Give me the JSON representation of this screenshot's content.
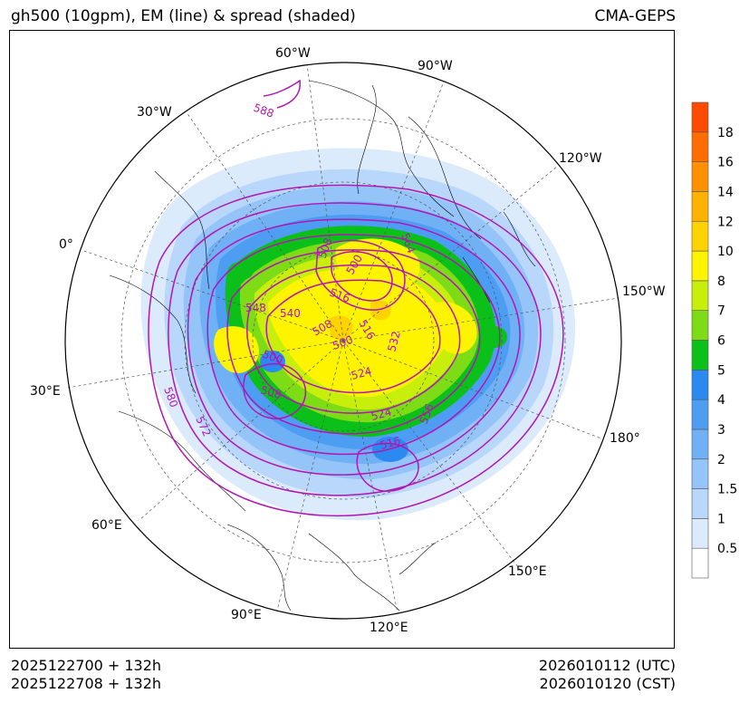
{
  "header": {
    "title_left": "gh500 (10gpm), EM (line) & spread (shaded)",
    "title_right": "CMA-GEPS"
  },
  "footer": {
    "init_utc": "2025122700 + 132h",
    "init_cst": "2025122708 + 132h",
    "valid_utc": "2026010112 (UTC)",
    "valid_cst": "2026010120 (CST)"
  },
  "map": {
    "projection": "north-polar-stereographic",
    "longitude_labels": [
      "60°W",
      "90°W",
      "30°W",
      "120°W",
      "0°",
      "150°W",
      "30°E",
      "180°",
      "60°E",
      "150°E",
      "90°E",
      "120°E"
    ],
    "contour_labels": [
      "588",
      "564",
      "508",
      "500",
      "548",
      "540",
      "516",
      "516",
      "508",
      "500",
      "500",
      "532",
      "524",
      "508",
      "580",
      "524",
      "556",
      "572",
      "516"
    ],
    "contour_color": "#b414b4",
    "contour_unit": "10gpm"
  },
  "colorbar": {
    "ticks": [
      "0.5",
      "1",
      "1.5",
      "2",
      "3",
      "4",
      "5",
      "6",
      "7",
      "8",
      "10",
      "12",
      "14",
      "16",
      "18"
    ],
    "colors": [
      "#ffffff",
      "#dbebfc",
      "#b8d7fb",
      "#94c4f8",
      "#70b1f6",
      "#4d9ef3",
      "#2a8af0",
      "#0cc01a",
      "#7edc16",
      "#c8ee0c",
      "#fff400",
      "#ffd300",
      "#ffb200",
      "#ff9000",
      "#ff6d00",
      "#ff4b00"
    ]
  }
}
